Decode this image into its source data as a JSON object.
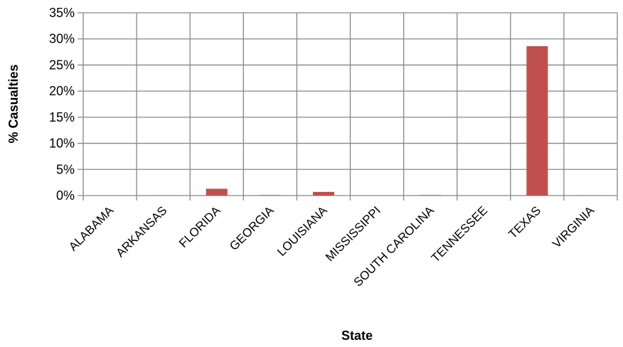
{
  "chart_data": {
    "type": "bar",
    "title": "",
    "xlabel": "State",
    "ylabel": "% Casualties",
    "categories": [
      "ALABAMA",
      "ARKANSAS",
      "FLORIDA",
      "GEORGIA",
      "LOUISIANA",
      "MISSISSIPPI",
      "SOUTH CAROLINA",
      "TENNESSEE",
      "TEXAS",
      "VIRGINIA"
    ],
    "values": [
      0.0,
      0.05,
      1.3,
      0.1,
      0.7,
      0.0,
      0.1,
      0.0,
      28.6,
      0.05
    ],
    "ylim": [
      0,
      35
    ],
    "yticks": [
      0,
      5,
      10,
      15,
      20,
      25,
      30,
      35
    ],
    "ytick_labels": [
      "0%",
      "5%",
      "10%",
      "15%",
      "20%",
      "25%",
      "30%",
      "35%"
    ],
    "grid": true,
    "legend": "none",
    "bar_color": "#c0504d",
    "grid_color": "#868686"
  }
}
